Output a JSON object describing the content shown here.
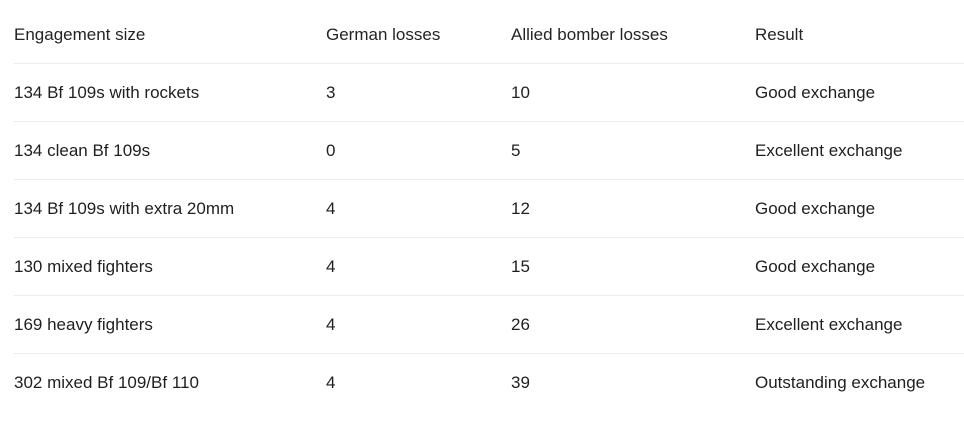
{
  "table": {
    "headers": [
      "Engagement size",
      "German losses",
      "Allied bomber losses",
      "Result"
    ],
    "rows": [
      [
        "134 Bf 109s with rockets",
        "3",
        "10",
        "Good exchange"
      ],
      [
        "134 clean Bf 109s",
        "0",
        "5",
        "Excellent exchange"
      ],
      [
        "134 Bf 109s with extra 20mm",
        "4",
        "12",
        "Good exchange"
      ],
      [
        "130 mixed fighters",
        "4",
        "15",
        "Good exchange"
      ],
      [
        "169 heavy fighters",
        "4",
        "26",
        "Excellent exchange"
      ],
      [
        "302 mixed Bf 109/Bf 110",
        "4",
        "39",
        "Outstanding exchange"
      ]
    ]
  }
}
